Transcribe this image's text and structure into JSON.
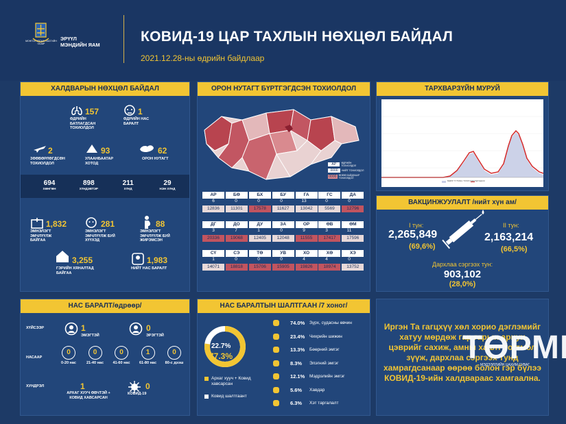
{
  "header": {
    "org_line1": "ЭРҮҮЛ",
    "org_line2": "МЭНДИЙН ЯАМ",
    "logo_text": "МОНГОЛ УЛСЫН ЗАСГИЙН ГАЗАР",
    "title": "КОВИД-19 ЦАР ТАХЛЫН НӨХЦӨЛ БАЙДАЛ",
    "date": "2021.12.28-ны өдрийн байдлаар"
  },
  "infection": {
    "heading": "ХАЛДВАРЫН НӨХЦӨЛ БАЙДАЛ",
    "confirmed": {
      "value": "157",
      "label": "ӨДРИЙН БАТЛАГДСАН ТОХИОЛДОЛ"
    },
    "deaths_day": {
      "value": "1",
      "label": "ӨДРИЙН НАС БАРАЛТ"
    },
    "imported": {
      "value": "2",
      "label": "ЗӨӨВӨРЛӨГДСӨН ТОХИОЛДОЛ"
    },
    "ub": {
      "value": "93",
      "label": "УЛААНБААТАР ХОТОД"
    },
    "rural": {
      "value": "62",
      "label": "ОРОН НУТАГТ"
    },
    "strip": [
      {
        "v": "694",
        "l": "ХӨНГӨН"
      },
      {
        "v": "898",
        "l": "ХҮНДЭВТЭР"
      },
      {
        "v": "211",
        "l": "ХҮНД"
      },
      {
        "v": "29",
        "l": "НЭН ХҮНД"
      }
    ],
    "treat_hosp": {
      "value": "1,832",
      "label": "ЭМНЭЛЭГТ ЭМЧЛҮҮЛЖ БАЙГАА"
    },
    "children": {
      "value": "281",
      "label": "ЭМНЭЛЭГТ ЭМЧЛҮҮЛЖ БУЙ ХҮҮХЭД"
    },
    "pregnant": {
      "value": "88",
      "label": "ЭМНЭЛЭГТ ЭМЧЛҮҮЛЖ БУЙ ЖИРЭМСЭН"
    },
    "home": {
      "value": "3,255",
      "label": "ГЭРИЙН ХЯНАЛТАД БАЙГАА"
    },
    "deaths_total": {
      "value": "1,983",
      "label": "НИЙТ НАС БАРАЛТ"
    }
  },
  "map": {
    "heading": "ОРОН НУТАГТ БҮРТГЭГДСЭН ТОХИОЛДОЛ",
    "legend": [
      {
        "code": "АР",
        "text": "ӨДРИЙН ТОХИОЛДОЛ"
      },
      {
        "code": "0000",
        "text": "НИЙТ ТОХИОЛДОЛ"
      },
      {
        "code": "0000",
        "text": "ӨНӨӨ БАЙДЛААР ТОХИОЛДОЛ"
      }
    ],
    "rows": [
      [
        {
          "c": "АР",
          "d": "6",
          "t": "12836",
          "k": "l"
        },
        {
          "c": "БӨ",
          "d": "0",
          "t": "11301",
          "k": "l"
        },
        {
          "c": "БХ",
          "d": "0",
          "t": "17578",
          "k": "d"
        },
        {
          "c": "БУ",
          "d": "0",
          "t": "11627",
          "k": "l"
        },
        {
          "c": "ГА",
          "d": "13",
          "t": "13042",
          "k": "l"
        },
        {
          "c": "ГС",
          "d": "0",
          "t": "5569",
          "k": "l"
        },
        {
          "c": "ДА",
          "d": "0",
          "t": "12796",
          "k": "d"
        }
      ],
      [
        {
          "c": "ДГ",
          "d": "3",
          "t": "20336",
          "k": "d"
        },
        {
          "c": "ДО",
          "d": "7",
          "t": "19068",
          "k": "d"
        },
        {
          "c": "ДУ",
          "d": "1",
          "t": "12405",
          "k": "l"
        },
        {
          "c": "ЗА",
          "d": "0",
          "t": "12048",
          "k": "l"
        },
        {
          "c": "ОР",
          "d": "9",
          "t": "11555",
          "k": "d"
        },
        {
          "c": "ӨВ",
          "d": "3",
          "t": "17417",
          "k": "d"
        },
        {
          "c": "ӨМ",
          "d": "11",
          "t": "17596",
          "k": "l"
        }
      ],
      [
        {
          "c": "СҮ",
          "d": "1",
          "t": "14071",
          "k": "l"
        },
        {
          "c": "СЭ",
          "d": "0",
          "t": "18818",
          "k": "d"
        },
        {
          "c": "ТӨ",
          "d": "0",
          "t": "15706",
          "k": "d"
        },
        {
          "c": "УВ",
          "d": "0",
          "t": "15905",
          "k": "d"
        },
        {
          "c": "ХО",
          "d": "4",
          "t": "19826",
          "k": "d"
        },
        {
          "c": "ХӨ",
          "d": "4",
          "t": "18974",
          "k": "d"
        },
        {
          "c": "ХЭ",
          "d": "0",
          "t": "13752",
          "k": "l"
        }
      ]
    ]
  },
  "trend": {
    "heading": "ТАРХВАРЗҮЙН МУРУЙ",
    "legend1": "ӨДӨР ТУТМЫН ТОХИОЛДОЛ",
    "legend2": "ДУНДАЖ"
  },
  "vaccine": {
    "heading": "ВАКЦИНЖУУЛАЛТ /нийт хүн ам/",
    "dose1_label": "I тун:",
    "dose1": "2,265,849",
    "dose1_pct": "(69,6%)",
    "dose2_label": "II тун:",
    "dose2": "2,163,214",
    "dose2_pct": "(66,5%)",
    "booster_label": "Дархлаа сэргээх тун:",
    "booster": "903,102",
    "booster_pct": "(28,0%)"
  },
  "deaths": {
    "heading": "НАС БАРАЛТ/өдрөөр/",
    "sex_label": "ХҮЙСЭЭР",
    "male": "1",
    "male_label": "ЭМЭГТЭЙ",
    "female": "0",
    "female_label": "ЭРЭГТЭЙ",
    "age_label": "НАСААР",
    "ages": [
      {
        "v": "0",
        "l": "0-20 нас"
      },
      {
        "v": "0",
        "l": "21-40 нас"
      },
      {
        "v": "0",
        "l": "41-60 нас"
      },
      {
        "v": "1",
        "l": "61-80 нас"
      },
      {
        "v": "0",
        "l": "80-с дээш"
      }
    ],
    "cause_label": "ХУНДРЭЛ",
    "cause1": "1",
    "cause1_label": "АРХАГ ХУУЧ ӨВЧТЭЙ + КОВИД ХАВСАРСАН",
    "cause2": "0",
    "cause2_label": "КОВИД-19"
  },
  "causes": {
    "heading": "НАС БАРАЛТЫН ШАЛТГААН /7 хоног/",
    "pct_a": "22.7%",
    "pct_b": "77.3%",
    "legend_a": "Архаг хууч + Ковид хавсарсан",
    "legend_b": "Ковид шалтгаант",
    "items": [
      {
        "p": "74.0%",
        "t": "Зүрх, судасны өвчин"
      },
      {
        "p": "23.4%",
        "t": "Чихрийн шижин"
      },
      {
        "p": "13.3%",
        "t": "Бөөрний эмгэг"
      },
      {
        "p": "8.3%",
        "t": "Элэгний эмгэг"
      },
      {
        "p": "12.1%",
        "t": "Мэдрэлийн эмгэг"
      },
      {
        "p": "5.6%",
        "t": "Хавдар"
      },
      {
        "p": "6.3%",
        "t": "Хэт таргалалт"
      }
    ],
    "donut": {
      "a": 22.7,
      "b": 77.3
    }
  },
  "message": {
    "text": "Иргэн Та гагцхүү хөл хорио дэглэмийг хатуу мөрдөж гар гарын ариун цэврийг сахиж, амны хаалт тогтмол зүүж, дархлаа сэргээх тунд хамрагдсанаар өөрөө болон гэр бүлээ КОВИД-19-ийн халдвараас хамгаална."
  },
  "watermark": {
    "brand": "ТӨРМН",
    "tagline": "МЭДЭЭЛЛИЙН ЦАХИМ СУВАГ"
  }
}
